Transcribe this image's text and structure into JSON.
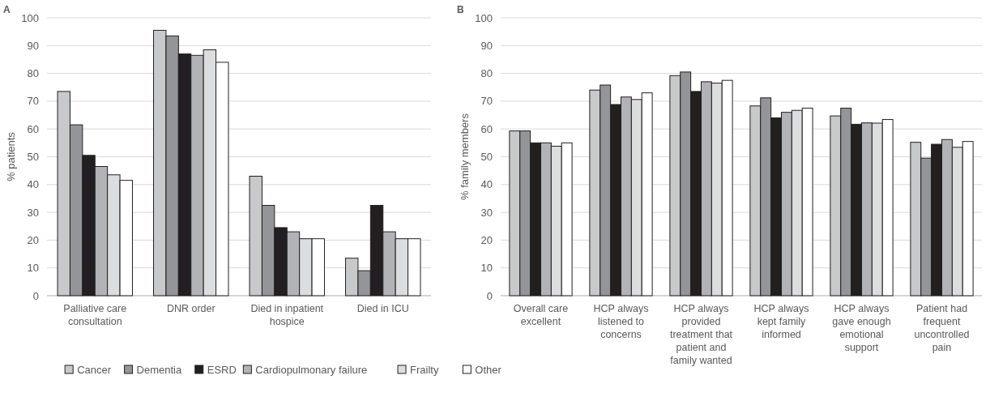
{
  "chart_data": [
    {
      "type": "bar",
      "title": "A",
      "ylabel": "% patients",
      "categories": [
        "Palliative care consultation",
        "DNR order",
        "Died in inpatient hospice",
        "Died in ICU"
      ],
      "ylim": [
        0,
        100
      ],
      "yticks": [
        0,
        10,
        20,
        30,
        40,
        50,
        60,
        70,
        80,
        90,
        100
      ],
      "grid": "y",
      "legend": "bottom",
      "series": [
        {
          "name": "Cancer",
          "color": "#c8c9cb",
          "values": [
            73.5,
            95.5,
            43,
            13.5
          ]
        },
        {
          "name": "Dementia",
          "color": "#939598",
          "values": [
            61.5,
            93.5,
            32.5,
            9
          ]
        },
        {
          "name": "ESRD",
          "color": "#231f20",
          "values": [
            50.5,
            87,
            24.5,
            32.5
          ]
        },
        {
          "name": "Cardiopulmonary failure",
          "color": "#b1b3b6",
          "values": [
            46.5,
            86.5,
            23,
            23
          ]
        },
        {
          "name": "Frailty",
          "color": "#dcdddf",
          "values": [
            43.5,
            88.5,
            20.5,
            20.5
          ]
        },
        {
          "name": "Other",
          "color": "#ffffff",
          "values": [
            41.5,
            84,
            20.5,
            20.5
          ]
        }
      ]
    },
    {
      "type": "bar",
      "title": "B",
      "ylabel": "% family members",
      "categories": [
        "Overall care excellent",
        "HCP always listened to concerns",
        "HCP always provided treatment that patient and family wanted",
        "HCP always kept family informed",
        "HCP always gave enough emotional support",
        "Patient had frequent uncontrolled pain"
      ],
      "ylim": [
        0,
        100
      ],
      "yticks": [
        0,
        10,
        20,
        30,
        40,
        50,
        60,
        70,
        80,
        90,
        100
      ],
      "grid": "y",
      "series": [
        {
          "color": "#c8c9cb",
          "values": [
            59.3,
            74,
            79.2,
            68.3,
            64.7,
            55.2
          ]
        },
        {
          "color": "#939598",
          "values": [
            59.3,
            75.8,
            80.5,
            71.2,
            67.5,
            49.5
          ]
        },
        {
          "color": "#231f20",
          "values": [
            55,
            68.8,
            73.5,
            64,
            61.7,
            54.5
          ]
        },
        {
          "color": "#b1b3b6",
          "values": [
            55,
            71.5,
            77,
            66,
            62.2,
            56.2
          ]
        },
        {
          "color": "#dcdddf",
          "values": [
            53.8,
            70.6,
            76.5,
            66.7,
            62.1,
            53.4
          ]
        },
        {
          "color": "#ffffff",
          "values": [
            55,
            73,
            77.5,
            67.5,
            63.4,
            55.5
          ]
        }
      ]
    }
  ]
}
